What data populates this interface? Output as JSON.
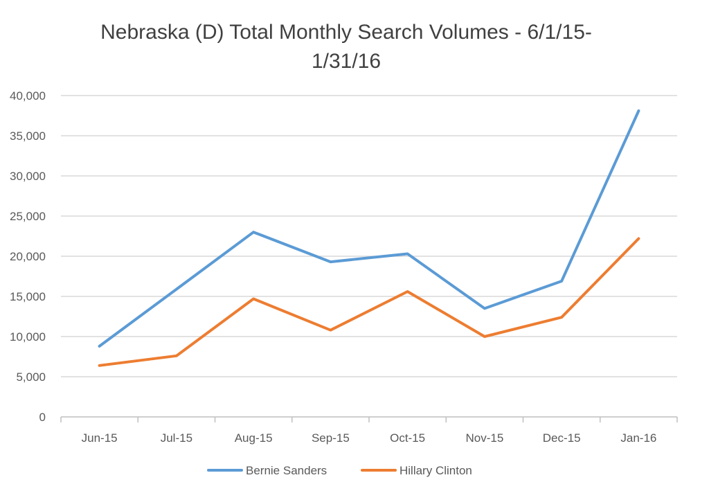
{
  "chart_data": {
    "type": "line",
    "title_lines": [
      "Nebraska (D) Total Monthly Search Volumes - 6/1/15-",
      "1/31/16"
    ],
    "categories": [
      "Jun-15",
      "Jul-15",
      "Aug-15",
      "Sep-15",
      "Oct-15",
      "Nov-15",
      "Dec-15",
      "Jan-16"
    ],
    "y_ticks": [
      "0",
      "5,000",
      "10,000",
      "15,000",
      "20,000",
      "25,000",
      "30,000",
      "35,000",
      "40,000"
    ],
    "ylim": [
      0,
      40000
    ],
    "grid": true,
    "legend_position": "bottom",
    "series": [
      {
        "name": "Bernie Sanders",
        "color": "#5B9BD5",
        "values": [
          8800,
          15900,
          23000,
          19300,
          20300,
          13500,
          16900,
          38100
        ]
      },
      {
        "name": "Hillary Clinton",
        "color": "#ED7D31",
        "values": [
          6400,
          7600,
          14700,
          10800,
          15600,
          10000,
          12400,
          22200
        ]
      }
    ]
  }
}
